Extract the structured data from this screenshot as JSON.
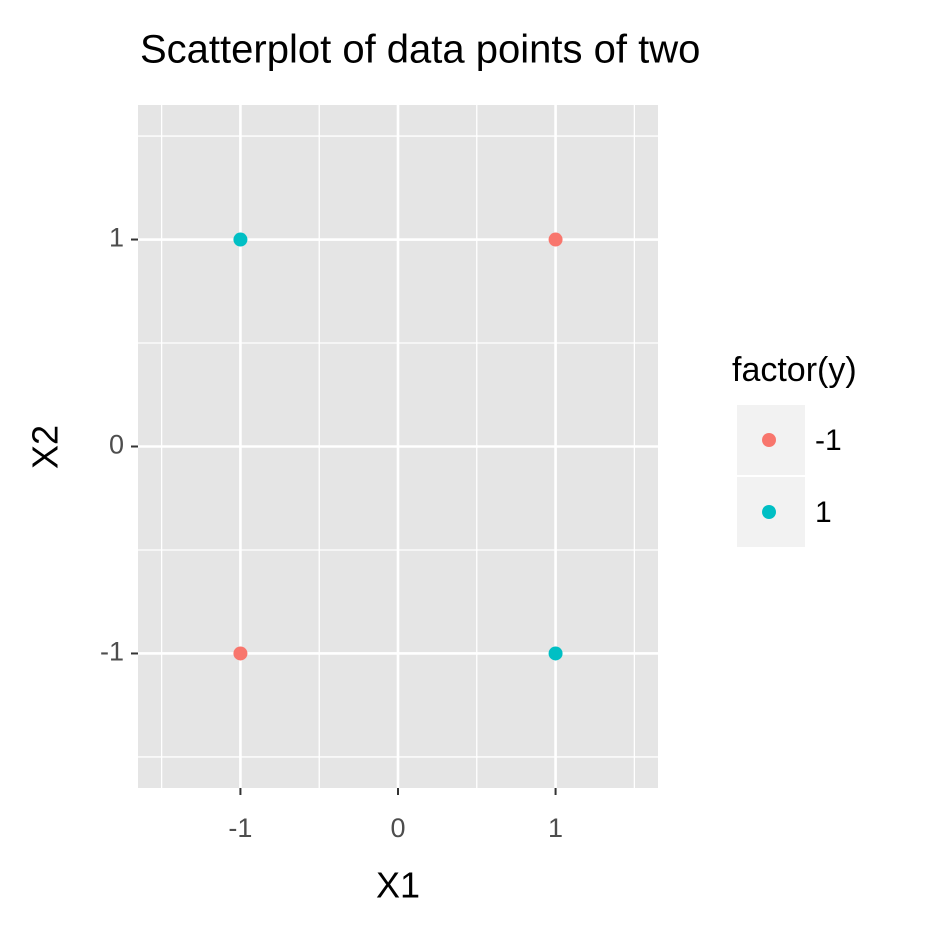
{
  "chart_data": {
    "type": "scatter",
    "title": "Scatterplot of data points of two",
    "x_label": "X1",
    "y_label": "X2",
    "legend_title": "factor(y)",
    "legend_position": "right",
    "xlim": [
      -1.65,
      1.65
    ],
    "ylim": [
      -1.65,
      1.65
    ],
    "xticks": [
      -1,
      0,
      1
    ],
    "yticks": [
      -1,
      0,
      1
    ],
    "grid": true,
    "minor_grid": true,
    "series": [
      {
        "name": "-1",
        "color": "#F8766D",
        "x": [
          1,
          -1
        ],
        "values": [
          1,
          -1
        ]
      },
      {
        "name": "1",
        "color": "#00BFC4",
        "x": [
          -1,
          1
        ],
        "values": [
          1,
          -1
        ]
      }
    ]
  }
}
